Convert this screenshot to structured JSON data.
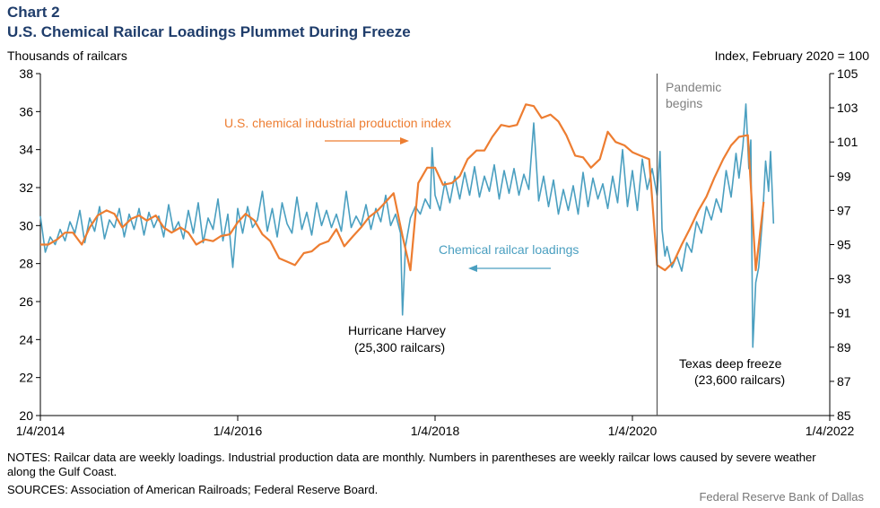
{
  "header": {
    "kicker": "Chart 2",
    "title": "U.S. Chemical Railcar Loadings Plummet During Freeze"
  },
  "notes": {
    "notes_text": "NOTES: Railcar data are weekly loadings. Industrial production data are monthly. Numbers in parentheses are weekly railcar lows caused by severe weather along the Gulf Coast.",
    "sources_text": "SOURCES: Association of American Railroads; Federal Reserve Board.",
    "credit": "Federal Reserve Bank of Dallas"
  },
  "colors": {
    "railcar": "#4a9fc0",
    "production": "#ed7d31",
    "title": "#1f3d6b",
    "event_line": "#555555",
    "event_text": "#808080"
  },
  "chart_data": {
    "type": "line",
    "title": "U.S. Chemical Railcar Loadings Plummet During Freeze",
    "ylabel_left": "Thousands  of railcars",
    "ylabel_right": "Index,  February 2020 = 100",
    "xlim": [
      2014.0,
      2022.0
    ],
    "ylim_left": [
      20,
      38
    ],
    "ylim_right": [
      85,
      105
    ],
    "x_ticks": [
      {
        "x": 2014.0,
        "label": "1/4/2014"
      },
      {
        "x": 2016.0,
        "label": "1/4/2016"
      },
      {
        "x": 2018.0,
        "label": "1/4/2018"
      },
      {
        "x": 2020.0,
        "label": "1/4/2020"
      },
      {
        "x": 2022.0,
        "label": "1/4/2022"
      }
    ],
    "y_ticks_left": [
      20,
      22,
      24,
      26,
      28,
      30,
      32,
      34,
      36,
      38
    ],
    "y_ticks_right": [
      85,
      87,
      89,
      91,
      93,
      95,
      97,
      99,
      101,
      103,
      105
    ],
    "grid": false,
    "series": [
      {
        "name": "Chemical railcar loadings",
        "axis": "left",
        "color": "#4a9fc0",
        "frequency": "weekly",
        "points": [
          [
            2014.0,
            30.5
          ],
          [
            2014.05,
            28.6
          ],
          [
            2014.1,
            29.4
          ],
          [
            2014.15,
            29.0
          ],
          [
            2014.2,
            29.8
          ],
          [
            2014.25,
            29.2
          ],
          [
            2014.3,
            30.2
          ],
          [
            2014.35,
            29.6
          ],
          [
            2014.4,
            30.8
          ],
          [
            2014.45,
            29.1
          ],
          [
            2014.5,
            30.4
          ],
          [
            2014.55,
            29.7
          ],
          [
            2014.6,
            31.0
          ],
          [
            2014.65,
            29.3
          ],
          [
            2014.7,
            30.3
          ],
          [
            2014.75,
            29.9
          ],
          [
            2014.8,
            30.9
          ],
          [
            2014.85,
            29.4
          ],
          [
            2014.9,
            30.6
          ],
          [
            2014.95,
            29.8
          ],
          [
            2015.0,
            30.9
          ],
          [
            2015.05,
            29.5
          ],
          [
            2015.1,
            30.7
          ],
          [
            2015.15,
            29.9
          ],
          [
            2015.2,
            30.5
          ],
          [
            2015.25,
            29.4
          ],
          [
            2015.3,
            31.1
          ],
          [
            2015.35,
            29.7
          ],
          [
            2015.4,
            30.2
          ],
          [
            2015.45,
            29.3
          ],
          [
            2015.5,
            30.8
          ],
          [
            2015.55,
            29.6
          ],
          [
            2015.6,
            31.2
          ],
          [
            2015.65,
            29.1
          ],
          [
            2015.7,
            30.4
          ],
          [
            2015.75,
            29.8
          ],
          [
            2015.8,
            31.4
          ],
          [
            2015.85,
            29.2
          ],
          [
            2015.9,
            30.6
          ],
          [
            2015.95,
            27.8
          ],
          [
            2016.0,
            30.9
          ],
          [
            2016.05,
            29.6
          ],
          [
            2016.1,
            31.0
          ],
          [
            2016.15,
            29.9
          ],
          [
            2016.2,
            30.3
          ],
          [
            2016.25,
            31.8
          ],
          [
            2016.3,
            29.7
          ],
          [
            2016.35,
            30.9
          ],
          [
            2016.4,
            29.4
          ],
          [
            2016.45,
            31.2
          ],
          [
            2016.5,
            30.1
          ],
          [
            2016.55,
            29.6
          ],
          [
            2016.6,
            31.5
          ],
          [
            2016.65,
            29.8
          ],
          [
            2016.7,
            30.7
          ],
          [
            2016.75,
            29.5
          ],
          [
            2016.8,
            31.2
          ],
          [
            2016.85,
            30.0
          ],
          [
            2016.9,
            30.8
          ],
          [
            2016.95,
            29.9
          ],
          [
            2017.0,
            30.6
          ],
          [
            2017.05,
            29.7
          ],
          [
            2017.1,
            31.8
          ],
          [
            2017.15,
            29.9
          ],
          [
            2017.2,
            30.5
          ],
          [
            2017.25,
            30.0
          ],
          [
            2017.3,
            31.1
          ],
          [
            2017.35,
            29.8
          ],
          [
            2017.4,
            30.9
          ],
          [
            2017.45,
            30.2
          ],
          [
            2017.5,
            31.6
          ],
          [
            2017.55,
            30.0
          ],
          [
            2017.6,
            30.6
          ],
          [
            2017.65,
            29.6
          ],
          [
            2017.67,
            25.3
          ],
          [
            2017.7,
            28.9
          ],
          [
            2017.75,
            30.4
          ],
          [
            2017.8,
            31.0
          ],
          [
            2017.85,
            30.6
          ],
          [
            2017.9,
            31.4
          ],
          [
            2017.95,
            30.9
          ],
          [
            2017.97,
            34.1
          ],
          [
            2018.0,
            31.6
          ],
          [
            2018.05,
            30.8
          ],
          [
            2018.1,
            32.3
          ],
          [
            2018.15,
            31.2
          ],
          [
            2018.2,
            32.6
          ],
          [
            2018.25,
            31.4
          ],
          [
            2018.3,
            32.8
          ],
          [
            2018.35,
            31.6
          ],
          [
            2018.4,
            33.1
          ],
          [
            2018.45,
            31.5
          ],
          [
            2018.5,
            32.6
          ],
          [
            2018.55,
            31.8
          ],
          [
            2018.6,
            33.2
          ],
          [
            2018.65,
            31.4
          ],
          [
            2018.7,
            32.9
          ],
          [
            2018.75,
            31.7
          ],
          [
            2018.8,
            33.0
          ],
          [
            2018.85,
            31.6
          ],
          [
            2018.9,
            32.7
          ],
          [
            2018.95,
            31.9
          ],
          [
            2019.0,
            35.4
          ],
          [
            2019.05,
            31.3
          ],
          [
            2019.1,
            32.6
          ],
          [
            2019.15,
            31.0
          ],
          [
            2019.2,
            32.4
          ],
          [
            2019.25,
            30.6
          ],
          [
            2019.3,
            31.9
          ],
          [
            2019.35,
            30.8
          ],
          [
            2019.4,
            32.1
          ],
          [
            2019.45,
            30.6
          ],
          [
            2019.5,
            32.8
          ],
          [
            2019.55,
            31.0
          ],
          [
            2019.6,
            32.5
          ],
          [
            2019.65,
            31.4
          ],
          [
            2019.7,
            32.2
          ],
          [
            2019.75,
            30.9
          ],
          [
            2019.8,
            32.6
          ],
          [
            2019.85,
            31.2
          ],
          [
            2019.9,
            34.0
          ],
          [
            2019.95,
            31.0
          ],
          [
            2020.0,
            32.9
          ],
          [
            2020.05,
            30.8
          ],
          [
            2020.1,
            33.5
          ],
          [
            2020.15,
            31.9
          ],
          [
            2020.2,
            33.0
          ],
          [
            2020.25,
            31.6
          ],
          [
            2020.28,
            33.9
          ],
          [
            2020.3,
            29.8
          ],
          [
            2020.33,
            28.4
          ],
          [
            2020.35,
            28.9
          ],
          [
            2020.4,
            27.8
          ],
          [
            2020.45,
            28.4
          ],
          [
            2020.5,
            27.6
          ],
          [
            2020.55,
            29.1
          ],
          [
            2020.6,
            28.6
          ],
          [
            2020.65,
            30.2
          ],
          [
            2020.7,
            29.6
          ],
          [
            2020.75,
            31.0
          ],
          [
            2020.8,
            30.3
          ],
          [
            2020.85,
            31.4
          ],
          [
            2020.9,
            30.7
          ],
          [
            2020.95,
            32.9
          ],
          [
            2021.0,
            31.5
          ],
          [
            2021.05,
            33.8
          ],
          [
            2021.08,
            32.5
          ],
          [
            2021.12,
            34.2
          ],
          [
            2021.15,
            36.4
          ],
          [
            2021.18,
            33.0
          ],
          [
            2021.2,
            34.5
          ],
          [
            2021.22,
            23.6
          ],
          [
            2021.25,
            27.0
          ],
          [
            2021.28,
            27.8
          ],
          [
            2021.32,
            30.5
          ],
          [
            2021.35,
            33.4
          ],
          [
            2021.38,
            31.8
          ],
          [
            2021.4,
            33.9
          ],
          [
            2021.43,
            30.1
          ]
        ]
      },
      {
        "name": "U.S. chemical industrial production index",
        "axis": "right",
        "color": "#ed7d31",
        "frequency": "monthly",
        "points": [
          [
            2014.0,
            95.0
          ],
          [
            2014.08,
            95.0
          ],
          [
            2014.17,
            95.3
          ],
          [
            2014.25,
            95.7
          ],
          [
            2014.33,
            95.7
          ],
          [
            2014.42,
            95.0
          ],
          [
            2014.5,
            96.0
          ],
          [
            2014.58,
            96.7
          ],
          [
            2014.67,
            97.0
          ],
          [
            2014.75,
            96.8
          ],
          [
            2014.83,
            96.0
          ],
          [
            2014.92,
            96.5
          ],
          [
            2015.0,
            96.7
          ],
          [
            2015.08,
            96.4
          ],
          [
            2015.17,
            96.7
          ],
          [
            2015.25,
            96.0
          ],
          [
            2015.33,
            95.7
          ],
          [
            2015.42,
            96.0
          ],
          [
            2015.5,
            95.7
          ],
          [
            2015.58,
            95.0
          ],
          [
            2015.67,
            95.3
          ],
          [
            2015.75,
            95.2
          ],
          [
            2015.83,
            95.5
          ],
          [
            2015.92,
            95.6
          ],
          [
            2016.0,
            96.3
          ],
          [
            2016.08,
            96.8
          ],
          [
            2016.17,
            96.4
          ],
          [
            2016.25,
            95.6
          ],
          [
            2016.33,
            95.2
          ],
          [
            2016.42,
            94.2
          ],
          [
            2016.5,
            94.0
          ],
          [
            2016.58,
            93.8
          ],
          [
            2016.67,
            94.5
          ],
          [
            2016.75,
            94.6
          ],
          [
            2016.83,
            95.0
          ],
          [
            2016.92,
            95.2
          ],
          [
            2017.0,
            95.9
          ],
          [
            2017.08,
            94.9
          ],
          [
            2017.17,
            95.5
          ],
          [
            2017.25,
            96.0
          ],
          [
            2017.33,
            96.6
          ],
          [
            2017.42,
            97.0
          ],
          [
            2017.5,
            97.5
          ],
          [
            2017.58,
            98.0
          ],
          [
            2017.67,
            95.5
          ],
          [
            2017.75,
            93.5
          ],
          [
            2017.83,
            98.6
          ],
          [
            2017.92,
            99.5
          ],
          [
            2018.0,
            99.5
          ],
          [
            2018.08,
            98.5
          ],
          [
            2018.17,
            98.6
          ],
          [
            2018.25,
            99.0
          ],
          [
            2018.33,
            100.0
          ],
          [
            2018.42,
            100.5
          ],
          [
            2018.5,
            100.5
          ],
          [
            2018.58,
            101.3
          ],
          [
            2018.67,
            102.0
          ],
          [
            2018.75,
            101.9
          ],
          [
            2018.83,
            102.0
          ],
          [
            2018.92,
            103.2
          ],
          [
            2019.0,
            103.1
          ],
          [
            2019.08,
            102.4
          ],
          [
            2019.17,
            102.6
          ],
          [
            2019.25,
            102.2
          ],
          [
            2019.33,
            101.4
          ],
          [
            2019.42,
            100.2
          ],
          [
            2019.5,
            100.1
          ],
          [
            2019.58,
            99.5
          ],
          [
            2019.67,
            100.0
          ],
          [
            2019.75,
            101.6
          ],
          [
            2019.83,
            101.0
          ],
          [
            2019.92,
            100.8
          ],
          [
            2020.0,
            100.4
          ],
          [
            2020.08,
            100.2
          ],
          [
            2020.17,
            100.0
          ],
          [
            2020.25,
            93.8
          ],
          [
            2020.33,
            93.5
          ],
          [
            2020.42,
            94.0
          ],
          [
            2020.5,
            95.0
          ],
          [
            2020.58,
            95.9
          ],
          [
            2020.67,
            97.0
          ],
          [
            2020.75,
            97.8
          ],
          [
            2020.83,
            98.9
          ],
          [
            2020.92,
            100.0
          ],
          [
            2021.0,
            100.8
          ],
          [
            2021.08,
            101.3
          ],
          [
            2021.17,
            101.4
          ],
          [
            2021.25,
            93.5
          ],
          [
            2021.33,
            97.5
          ]
        ]
      }
    ],
    "annotations": [
      {
        "text": "U.S. chemical industrial production index",
        "color": "#ed7d31"
      },
      {
        "text": "Chemical railcar loadings",
        "color": "#4a9fc0"
      },
      {
        "text": "Pandemic",
        "text2": "begins",
        "color": "#808080",
        "x": 2020.25
      },
      {
        "text": "Hurricane Harvey",
        "text2": "(25,300 railcars)",
        "color": "#000000"
      },
      {
        "text": "Texas deep freeze",
        "text2": "(23,600 railcars)",
        "color": "#000000"
      }
    ]
  }
}
